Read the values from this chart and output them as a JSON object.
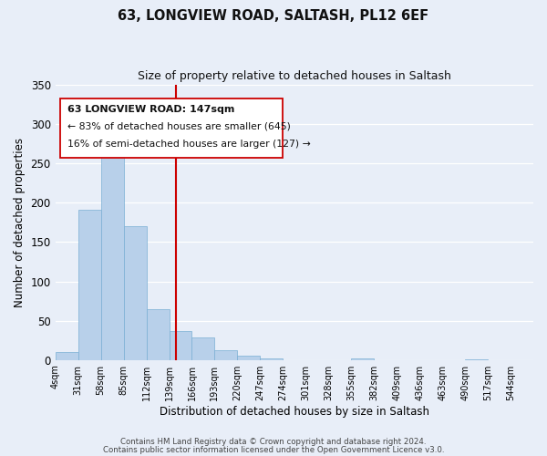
{
  "title": "63, LONGVIEW ROAD, SALTASH, PL12 6EF",
  "subtitle": "Size of property relative to detached houses in Saltash",
  "xlabel": "Distribution of detached houses by size in Saltash",
  "ylabel": "Number of detached properties",
  "bar_values": [
    10,
    191,
    260,
    170,
    65,
    37,
    29,
    13,
    5,
    2,
    0,
    0,
    0,
    2,
    0,
    0,
    0,
    0,
    1,
    0,
    0
  ],
  "bin_edges": [
    4,
    31,
    58,
    85,
    112,
    139,
    166,
    193,
    220,
    247,
    274,
    301,
    328,
    355,
    382,
    409,
    436,
    463,
    490,
    517,
    544,
    571
  ],
  "tick_labels": [
    "4sqm",
    "31sqm",
    "58sqm",
    "85sqm",
    "112sqm",
    "139sqm",
    "166sqm",
    "193sqm",
    "220sqm",
    "247sqm",
    "274sqm",
    "301sqm",
    "328sqm",
    "355sqm",
    "382sqm",
    "409sqm",
    "436sqm",
    "463sqm",
    "490sqm",
    "517sqm",
    "544sqm"
  ],
  "bar_color": "#b8d0ea",
  "bar_edge_color": "#7aafd4",
  "vline_x": 147,
  "vline_color": "#cc0000",
  "ylim": [
    0,
    350
  ],
  "yticks": [
    0,
    50,
    100,
    150,
    200,
    250,
    300,
    350
  ],
  "annotation_lines": [
    "63 LONGVIEW ROAD: 147sqm",
    "← 83% of detached houses are smaller (645)",
    "16% of semi-detached houses are larger (127) →"
  ],
  "footer_line1": "Contains HM Land Registry data © Crown copyright and database right 2024.",
  "footer_line2": "Contains public sector information licensed under the Open Government Licence v3.0.",
  "background_color": "#e8eef8",
  "plot_bg_color": "#e8eef8"
}
